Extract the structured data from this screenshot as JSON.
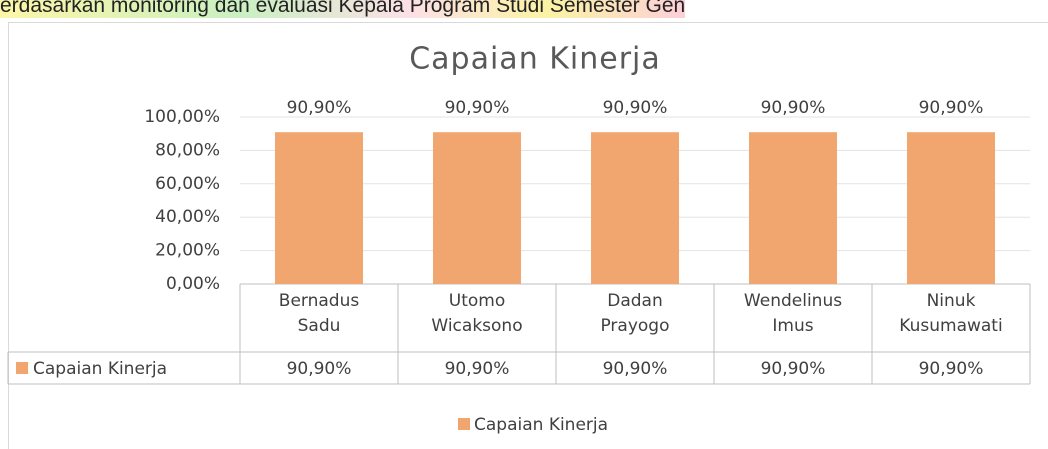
{
  "header_text": "erdasarkan monitoring dan evaluasi Kepala Program Studi Semester Gen",
  "chart_data": {
    "type": "bar",
    "title": "Capaian Kinerja",
    "categories": [
      "Bernadus Sadu",
      "Utomo Wicaksono",
      "Dadan Prayogo",
      "Wendelinus Imus",
      "Ninuk Kusumawati"
    ],
    "series": [
      {
        "name": "Capaian Kinerja",
        "color": "#f0a66e",
        "values": [
          90.9,
          90.9,
          90.9,
          90.9,
          90.9
        ],
        "value_labels": [
          "90,90%",
          "90,90%",
          "90,90%",
          "90,90%",
          "90,90%"
        ]
      }
    ],
    "ylim": [
      0,
      100
    ],
    "yticks": [
      {
        "value": 0,
        "label": "0,00%"
      },
      {
        "value": 20,
        "label": "20,00%"
      },
      {
        "value": 40,
        "label": "40,00%"
      },
      {
        "value": 60,
        "label": "60,00%"
      },
      {
        "value": 80,
        "label": "80,00%"
      },
      {
        "value": 100,
        "label": "100,00%"
      }
    ],
    "grid": true,
    "legend": "bottom",
    "data_table": true
  }
}
